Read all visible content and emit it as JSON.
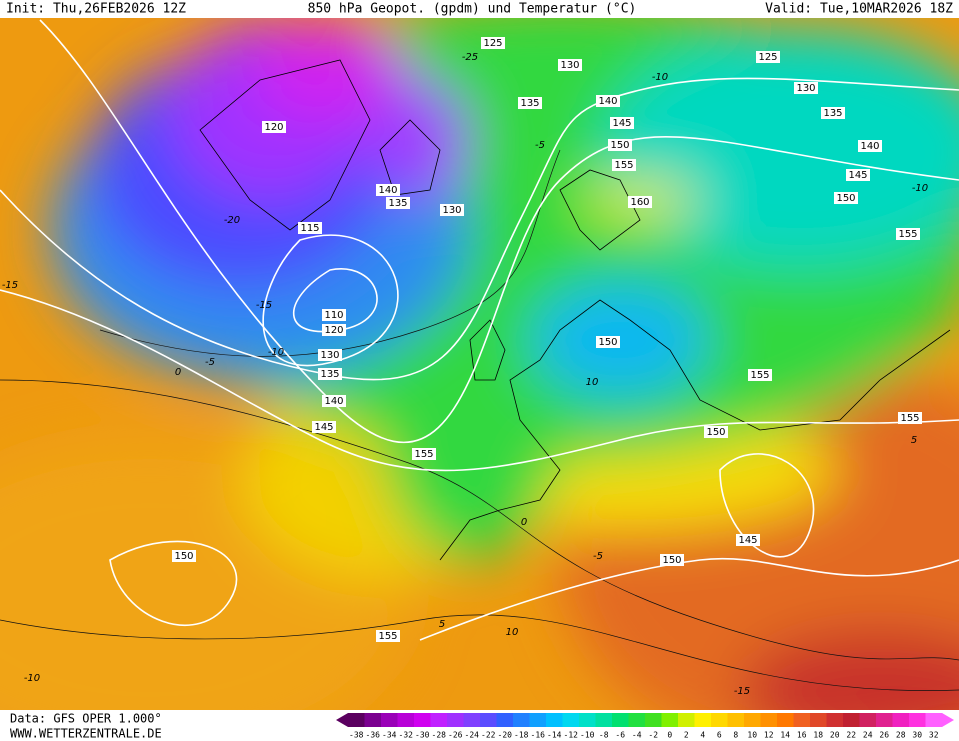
{
  "header": {
    "init": "Init: Thu,26FEB2026 12Z",
    "title": "850 hPa Geopot. (gpdm) und Temperatur (°C)",
    "valid": "Valid: Tue,10MAR2026 18Z"
  },
  "footer": {
    "source": "Data: GFS OPER 1.000°",
    "website": "WWW.WETTERZENTRALE.DE"
  },
  "colorbar": {
    "ticks": [
      -38,
      -36,
      -34,
      -32,
      -30,
      -28,
      -26,
      -24,
      -22,
      -20,
      -18,
      -16,
      -14,
      -12,
      -10,
      -8,
      -6,
      -4,
      -2,
      0,
      2,
      4,
      6,
      8,
      10,
      12,
      14,
      16,
      18,
      20,
      22,
      24,
      26,
      28,
      30,
      32
    ],
    "colors": [
      "#5a0060",
      "#7a0090",
      "#9a00b8",
      "#b800d8",
      "#d000f0",
      "#c020ff",
      "#a030ff",
      "#8040ff",
      "#5a4cff",
      "#3060ff",
      "#2080ff",
      "#10a0ff",
      "#00c0ff",
      "#00d8f0",
      "#00e0c8",
      "#00e0a0",
      "#00e070",
      "#20e040",
      "#40e020",
      "#80f000",
      "#d0f000",
      "#fff000",
      "#ffd800",
      "#ffc000",
      "#ffa800",
      "#ff9000",
      "#ff7800",
      "#f06020",
      "#e04828",
      "#d03030",
      "#c02030",
      "#d02060",
      "#e02090",
      "#f020c0",
      "#ff30e0",
      "#ff60ff"
    ]
  },
  "geopotential_labels": [
    125,
    130,
    140,
    135,
    145,
    150,
    155,
    160,
    120,
    140,
    135,
    130,
    115,
    110,
    120,
    130,
    135,
    140,
    145,
    155,
    150,
    155,
    150,
    150,
    145,
    155,
    150,
    155,
    150,
    145,
    140,
    135,
    130,
    125,
    155
  ],
  "temperature_labels": [
    -15,
    -10,
    -5,
    0,
    5,
    10,
    -15,
    -10,
    -25,
    -20,
    -5,
    -10,
    10,
    0,
    -5,
    5,
    -15,
    -10
  ]
}
